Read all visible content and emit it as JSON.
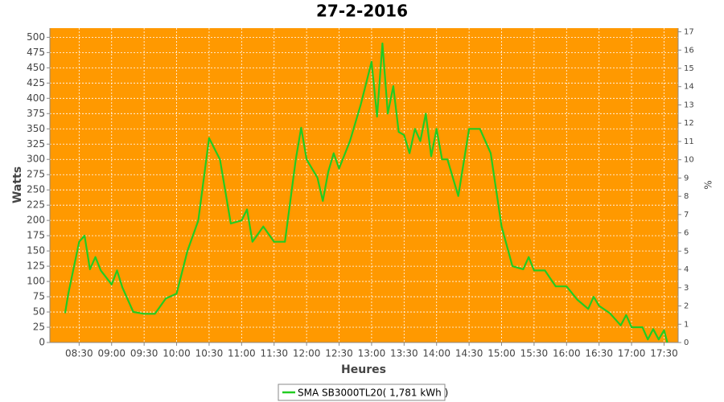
{
  "chart_data": {
    "type": "line",
    "title": "27-2-2016",
    "x_label": "Heures",
    "y_label": "Watts",
    "y2_label": "%",
    "x": [
      "08:17",
      "08:20",
      "08:30",
      "08:35",
      "08:40",
      "08:45",
      "08:50",
      "09:00",
      "09:05",
      "09:10",
      "09:20",
      "09:30",
      "09:40",
      "09:50",
      "10:00",
      "10:10",
      "10:20",
      "10:30",
      "10:40",
      "10:50",
      "11:00",
      "11:05",
      "11:10",
      "11:20",
      "11:30",
      "11:40",
      "11:50",
      "11:55",
      "12:00",
      "12:10",
      "12:15",
      "12:20",
      "12:25",
      "12:30",
      "12:40",
      "12:50",
      "13:00",
      "13:05",
      "13:10",
      "13:15",
      "13:20",
      "13:25",
      "13:30",
      "13:35",
      "13:40",
      "13:45",
      "13:50",
      "13:55",
      "14:00",
      "14:05",
      "14:10",
      "14:20",
      "14:30",
      "14:40",
      "14:50",
      "15:00",
      "15:10",
      "15:20",
      "15:25",
      "15:30",
      "15:40",
      "15:50",
      "16:00",
      "16:10",
      "16:20",
      "16:25",
      "16:30",
      "16:40",
      "16:50",
      "16:55",
      "17:00",
      "17:10",
      "17:15",
      "17:20",
      "17:25",
      "17:30",
      "17:33"
    ],
    "series": [
      {
        "name": "SMA SB3000TL20( 1,781 kWh )",
        "color": "#22cc22",
        "values": [
          48,
          80,
          165,
          175,
          120,
          140,
          118,
          95,
          118,
          90,
          50,
          47,
          47,
          72,
          80,
          150,
          200,
          335,
          300,
          195,
          200,
          218,
          165,
          190,
          165,
          165,
          300,
          352,
          300,
          270,
          232,
          280,
          310,
          285,
          330,
          390,
          460,
          370,
          490,
          375,
          420,
          345,
          340,
          310,
          350,
          330,
          375,
          305,
          350,
          300,
          300,
          240,
          350,
          350,
          310,
          190,
          125,
          120,
          140,
          118,
          118,
          92,
          92,
          70,
          55,
          75,
          60,
          48,
          28,
          45,
          25,
          25,
          5,
          22,
          5,
          20,
          0
        ]
      }
    ],
    "xlim": [
      "08:03",
      "17:43"
    ],
    "xticks": [
      "08:30",
      "09:00",
      "09:30",
      "10:00",
      "10:30",
      "11:00",
      "11:30",
      "12:00",
      "12:30",
      "13:00",
      "13:30",
      "14:00",
      "14:30",
      "15:00",
      "15:30",
      "16:00",
      "16:30",
      "17:00",
      "17:30"
    ],
    "ylim": [
      0,
      515
    ],
    "yticks": [
      0,
      25,
      50,
      75,
      100,
      125,
      150,
      175,
      200,
      225,
      250,
      275,
      300,
      325,
      350,
      375,
      400,
      425,
      450,
      475,
      500
    ],
    "y2lim": [
      0,
      17.2
    ],
    "y2ticks": [
      0,
      1,
      2,
      3,
      4,
      5,
      6,
      7,
      8,
      9,
      10,
      11,
      12,
      13,
      14,
      15,
      16,
      17
    ],
    "grid": true,
    "background": "#ff9900",
    "legend": "bottom"
  }
}
